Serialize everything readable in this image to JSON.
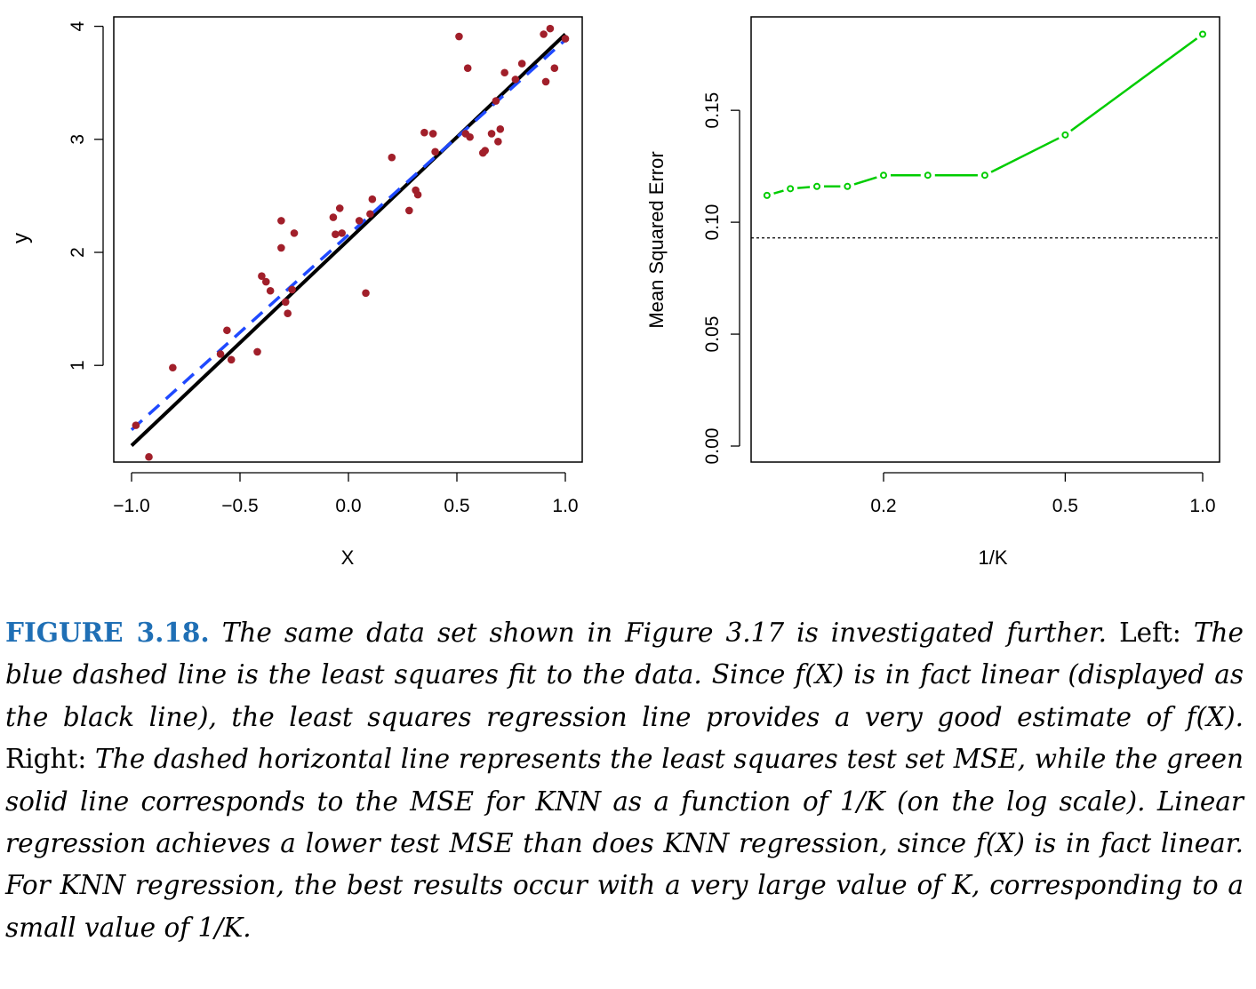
{
  "chart_data": [
    {
      "type": "scatter",
      "title": "",
      "xlabel": "X",
      "ylabel": "y",
      "xlim": [
        -1.0,
        1.0
      ],
      "ylim": [
        0.2,
        4.0
      ],
      "xticks": [
        "−1.0",
        "−0.5",
        "0.0",
        "0.5",
        "1.0"
      ],
      "yticks": [
        "1",
        "2",
        "3",
        "4"
      ],
      "points": [
        [
          -0.98,
          0.47
        ],
        [
          -0.92,
          0.19
        ],
        [
          -0.81,
          0.98
        ],
        [
          -0.59,
          1.1
        ],
        [
          -0.56,
          1.31
        ],
        [
          -0.54,
          1.05
        ],
        [
          -0.42,
          1.12
        ],
        [
          -0.4,
          1.79
        ],
        [
          -0.38,
          1.74
        ],
        [
          -0.36,
          1.66
        ],
        [
          -0.31,
          2.28
        ],
        [
          -0.31,
          2.04
        ],
        [
          -0.29,
          1.56
        ],
        [
          -0.28,
          1.46
        ],
        [
          -0.26,
          1.67
        ],
        [
          -0.25,
          2.17
        ],
        [
          -0.07,
          2.31
        ],
        [
          -0.06,
          2.16
        ],
        [
          -0.04,
          2.39
        ],
        [
          -0.03,
          2.17
        ],
        [
          0.05,
          2.28
        ],
        [
          0.08,
          1.64
        ],
        [
          0.1,
          2.34
        ],
        [
          0.11,
          2.47
        ],
        [
          0.2,
          2.84
        ],
        [
          0.28,
          2.37
        ],
        [
          0.31,
          2.55
        ],
        [
          0.32,
          2.51
        ],
        [
          0.35,
          3.06
        ],
        [
          0.39,
          3.05
        ],
        [
          0.4,
          2.89
        ],
        [
          0.51,
          3.91
        ],
        [
          0.54,
          3.05
        ],
        [
          0.55,
          3.63
        ],
        [
          0.56,
          3.02
        ],
        [
          0.62,
          2.88
        ],
        [
          0.63,
          2.9
        ],
        [
          0.66,
          3.05
        ],
        [
          0.68,
          3.34
        ],
        [
          0.69,
          2.98
        ],
        [
          0.7,
          3.09
        ],
        [
          0.72,
          3.59
        ],
        [
          0.77,
          3.53
        ],
        [
          0.8,
          3.67
        ],
        [
          0.9,
          3.93
        ],
        [
          0.91,
          3.51
        ],
        [
          0.93,
          3.98
        ],
        [
          0.95,
          3.63
        ],
        [
          1.0,
          3.89
        ]
      ],
      "lines": [
        {
          "style": "solid",
          "color": "#000000",
          "x": [
            -1.0,
            1.0
          ],
          "y": [
            0.29,
            3.93
          ]
        },
        {
          "style": "dashed",
          "color": "#1f49ff",
          "x": [
            -1.0,
            1.0
          ],
          "y": [
            0.43,
            3.88
          ]
        }
      ]
    },
    {
      "type": "line",
      "title": "",
      "xlabel": "1/K",
      "ylabel": "Mean Squared Error",
      "xscale": "log",
      "xlim": [
        0.1,
        1.0
      ],
      "ylim": [
        0.0,
        0.19
      ],
      "xticks": [
        "0.2",
        "0.5",
        "1.0"
      ],
      "yticks": [
        "0.00",
        "0.05",
        "0.10",
        "0.15"
      ],
      "series": [
        {
          "color": "#00cc00",
          "x": [
            0.1111,
            0.125,
            0.1429,
            0.1667,
            0.2,
            0.25,
            0.3333,
            0.5,
            1.0
          ],
          "values": [
            0.112,
            0.115,
            0.116,
            0.116,
            0.121,
            0.121,
            0.121,
            0.139,
            0.184
          ]
        }
      ],
      "hline": {
        "y": 0.093,
        "style": "dotted",
        "color": "#000000"
      }
    }
  ],
  "caption": {
    "label": "FIGURE 3.18.",
    "s1": " The same data set shown in Figure 3.17 is investigated further.",
    "s2": "Left:",
    "s3": " The blue dashed line is the least squares fit to the data. Since f(X) is in fact linear (displayed as the black line), the least squares regression line provides a very good estimate of f(X).",
    "s4": " Right:",
    "s5": " The dashed horizontal line represents the least squares test set MSE, while the green solid line corresponds to the MSE for KNN as a function of 1/K (on the log scale). Linear regression achieves a lower test MSE than does KNN regression, since f(X) is in fact linear. For KNN regression, the best results occur with a very large value of K, corresponding to a small value of 1/K."
  }
}
